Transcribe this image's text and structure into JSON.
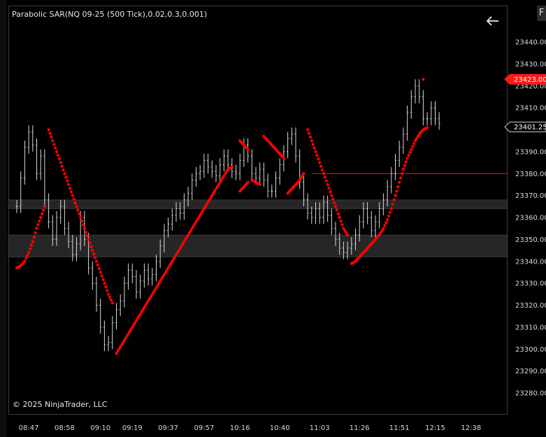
{
  "indicator_title": "Parabolic SAR(NQ 09-25 (500 Tick),0.02,0.3,0.001)",
  "copyright": "© 2025 NinjaTrader, LLC",
  "corner_tab_label": "F",
  "icons": {
    "back": "back-arrow-icon"
  },
  "colors": {
    "sar": "#ff0000",
    "price_bars": "#d9d9d9",
    "last_price_badge": "#ff1a1a",
    "current_price_badge": "#000000",
    "zone": "#2b2b2b",
    "level_line": "#cc2a1f"
  },
  "chart_data": {
    "type": "line",
    "instrument": "NQ 09-25 (500 Tick)",
    "ylim": [
      23270,
      23450
    ],
    "y_ticks": [
      23280,
      23290,
      23300,
      23310,
      23320,
      23330,
      23340,
      23350,
      23360,
      23370,
      23380,
      23390,
      23400,
      23410,
      23420,
      23430,
      23440
    ],
    "y_tick_labels": [
      "23280.00",
      "23290.00",
      "23300.00",
      "23310.00",
      "23320.00",
      "23330.00",
      "23340.00",
      "23350.00",
      "23360.00",
      "23370.00",
      "23380.00",
      "23390.00",
      "23400.00",
      "23410.00",
      "23420.00",
      "23430.00",
      "23440.00"
    ],
    "x_ticks": [
      "08:47",
      "08:58",
      "09:10",
      "09:19",
      "09:37",
      "09:57",
      "10:16",
      "10:40",
      "11:03",
      "11:26",
      "11:51",
      "12:15",
      "12:38"
    ],
    "x_tick_index": [
      3,
      12,
      21,
      29,
      38,
      47,
      56,
      66,
      76,
      86,
      96,
      105,
      114
    ],
    "last_price_badge": "23423.00",
    "current_price_badge": "23401.25",
    "last_price": 23423.0,
    "current_price": 23401.25,
    "zones": [
      [
        23364,
        23368
      ],
      [
        23342,
        23352
      ]
    ],
    "level_line": 23380,
    "price_close": [
      23365,
      23378,
      23392,
      23399,
      23393,
      23380,
      23388,
      23368,
      23358,
      23350,
      23360,
      23365,
      23355,
      23349,
      23343,
      23348,
      23360,
      23350,
      23337,
      23330,
      23320,
      23310,
      23302,
      23303,
      23312,
      23318,
      23322,
      23330,
      23336,
      23333,
      23326,
      23331,
      23336,
      23332,
      23334,
      23340,
      23347,
      23354,
      23357,
      23361,
      23364,
      23362,
      23368,
      23371,
      23377,
      23380,
      23381,
      23386,
      23383,
      23381,
      23379,
      23384,
      23388,
      23384,
      23381,
      23380,
      23386,
      23393,
      23388,
      23380,
      23378,
      23382,
      23377,
      23372,
      23372,
      23378,
      23384,
      23390,
      23396,
      23398,
      23388,
      23376,
      23368,
      23362,
      23360,
      23364,
      23360,
      23367,
      23361,
      23355,
      23350,
      23346,
      23344,
      23346,
      23348,
      23352,
      23358,
      23364,
      23360,
      23354,
      23358,
      23364,
      23368,
      23374,
      23380,
      23386,
      23392,
      23398,
      23408,
      23415,
      23420,
      23415,
      23405,
      23405,
      23410,
      23405,
      23403
    ],
    "sar_segments": [
      {
        "points": [
          [
            0,
            23337
          ],
          [
            1,
            23338
          ],
          [
            2,
            23340
          ],
          [
            3,
            23344
          ],
          [
            4,
            23349
          ],
          [
            5,
            23355
          ],
          [
            6,
            23360
          ],
          [
            7,
            23365
          ]
        ]
      },
      {
        "points": [
          [
            8,
            23400
          ],
          [
            9,
            23395
          ],
          [
            10,
            23390
          ],
          [
            11,
            23385
          ],
          [
            12,
            23380
          ],
          [
            13,
            23375
          ],
          [
            14,
            23370
          ],
          [
            15,
            23365
          ],
          [
            16,
            23360
          ],
          [
            17,
            23355
          ],
          [
            18,
            23350
          ],
          [
            19,
            23345
          ],
          [
            20,
            23340
          ],
          [
            21,
            23335
          ],
          [
            22,
            23330
          ],
          [
            23,
            23325
          ],
          [
            24,
            23321
          ]
        ]
      },
      {
        "points": [
          [
            25,
            23298
          ],
          [
            26,
            23301
          ],
          [
            27,
            23304
          ],
          [
            28,
            23307
          ],
          [
            29,
            23310
          ],
          [
            30,
            23313
          ],
          [
            31,
            23316
          ],
          [
            32,
            23319
          ],
          [
            33,
            23322
          ],
          [
            34,
            23325
          ],
          [
            35,
            23328
          ],
          [
            36,
            23331
          ],
          [
            37,
            23334
          ],
          [
            38,
            23337
          ],
          [
            39,
            23340
          ],
          [
            40,
            23343
          ],
          [
            41,
            23346
          ],
          [
            42,
            23349
          ],
          [
            43,
            23352
          ],
          [
            44,
            23355
          ],
          [
            45,
            23358
          ],
          [
            46,
            23361
          ],
          [
            47,
            23364
          ],
          [
            48,
            23367
          ],
          [
            49,
            23370
          ],
          [
            50,
            23373
          ],
          [
            51,
            23376
          ],
          [
            52,
            23379
          ],
          [
            53,
            23382
          ],
          [
            54,
            23383
          ]
        ]
      },
      {
        "points": [
          [
            56,
            23395
          ],
          [
            57,
            23393
          ],
          [
            58,
            23391
          ]
        ]
      },
      {
        "points": [
          [
            56,
            23372
          ],
          [
            57,
            23374
          ],
          [
            58,
            23376
          ]
        ]
      },
      {
        "points": [
          [
            59,
            23377
          ],
          [
            60,
            23376
          ],
          [
            61,
            23375
          ]
        ]
      },
      {
        "points": [
          [
            62,
            23397
          ],
          [
            63,
            23395
          ],
          [
            64,
            23393
          ],
          [
            65,
            23391
          ],
          [
            66,
            23389
          ],
          [
            67,
            23387
          ]
        ]
      },
      {
        "points": [
          [
            68,
            23371
          ],
          [
            69,
            23373
          ],
          [
            70,
            23375
          ],
          [
            71,
            23377
          ],
          [
            72,
            23380
          ]
        ]
      },
      {
        "points": [
          [
            73,
            23400
          ],
          [
            74,
            23395
          ],
          [
            75,
            23390
          ],
          [
            76,
            23385
          ],
          [
            77,
            23380
          ],
          [
            78,
            23375
          ],
          [
            79,
            23370
          ],
          [
            80,
            23365
          ],
          [
            81,
            23360
          ],
          [
            82,
            23355
          ],
          [
            83,
            23352
          ]
        ]
      },
      {
        "points": [
          [
            84,
            23339
          ],
          [
            85,
            23340
          ],
          [
            86,
            23342
          ],
          [
            87,
            23344
          ],
          [
            88,
            23346
          ],
          [
            89,
            23348
          ],
          [
            90,
            23350
          ],
          [
            91,
            23352
          ],
          [
            92,
            23355
          ],
          [
            93,
            23359
          ],
          [
            94,
            23364
          ],
          [
            95,
            23370
          ],
          [
            96,
            23376
          ],
          [
            97,
            23382
          ],
          [
            98,
            23387
          ],
          [
            99,
            23391
          ],
          [
            100,
            23395
          ],
          [
            101,
            23398
          ],
          [
            102,
            23400
          ],
          [
            103,
            23401
          ]
        ]
      },
      {
        "points": [
          [
            102,
            23423
          ]
        ]
      }
    ]
  }
}
